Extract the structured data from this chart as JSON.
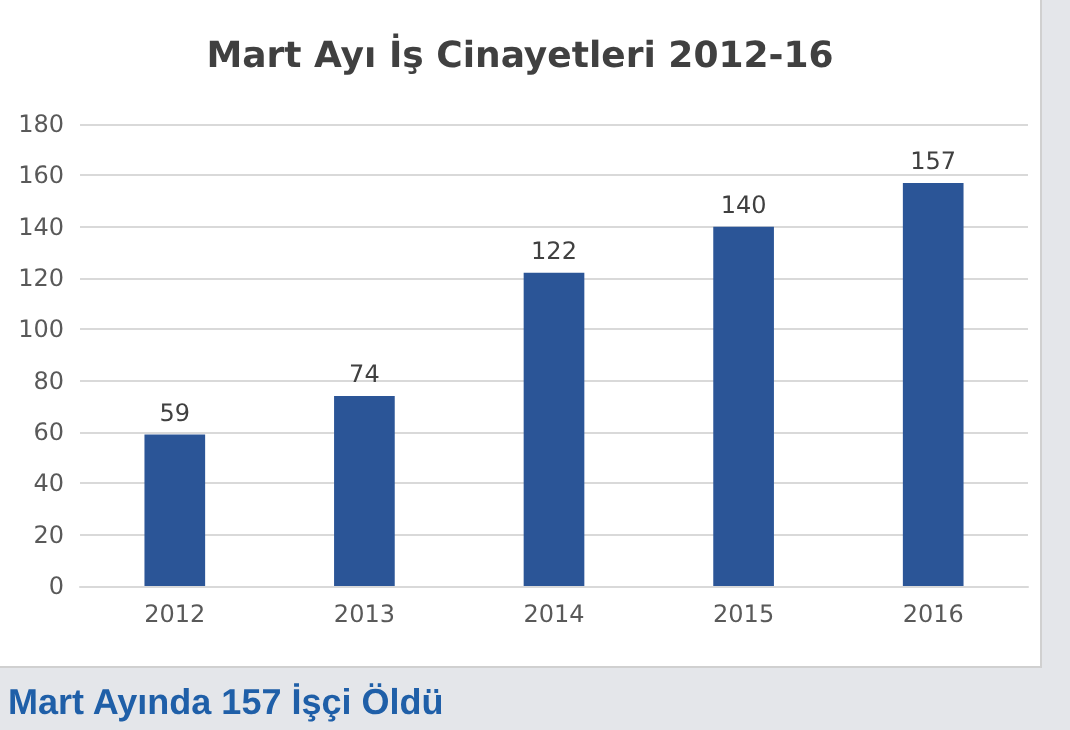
{
  "chart_data": {
    "type": "bar",
    "title": "Mart Ayı İş Cinayetleri 2012-16",
    "categories": [
      "2012",
      "2013",
      "2014",
      "2015",
      "2016"
    ],
    "values": [
      59,
      74,
      122,
      140,
      157
    ],
    "color": "#2b5597",
    "ylim": [
      0,
      180
    ],
    "yticks": [
      0,
      20,
      40,
      60,
      80,
      100,
      120,
      140,
      160,
      180
    ],
    "grid": "y",
    "data_labels": true,
    "annotations": [
      "Mart Ayında 157 İşçi Öldü"
    ]
  }
}
